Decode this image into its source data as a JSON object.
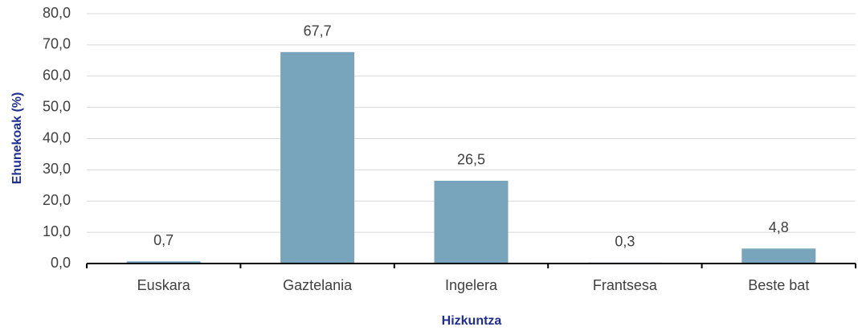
{
  "chart_data": {
    "type": "bar",
    "categories": [
      "Euskara",
      "Gaztelania",
      "Ingelera",
      "Frantsesa",
      "Beste bat"
    ],
    "values": [
      0.7,
      67.7,
      26.5,
      0.3,
      4.8
    ],
    "value_labels": [
      "0,7",
      "67,7",
      "26,5",
      "0,3",
      "4,8"
    ],
    "color": "#78a5bb",
    "ylabel": "Ehunekoak (%)",
    "xlabel": "Hizkuntza",
    "ylim": [
      0,
      80
    ],
    "yticks": [
      {
        "value": 0,
        "label": "0,0"
      },
      {
        "value": 10,
        "label": "10,0"
      },
      {
        "value": 20,
        "label": "20,0"
      },
      {
        "value": 30,
        "label": "30,0"
      },
      {
        "value": 40,
        "label": "40,0"
      },
      {
        "value": 50,
        "label": "50,0"
      },
      {
        "value": 60,
        "label": "60,0"
      },
      {
        "value": 70,
        "label": "70,0"
      },
      {
        "value": 80,
        "label": "80,0"
      }
    ],
    "grid": true
  }
}
